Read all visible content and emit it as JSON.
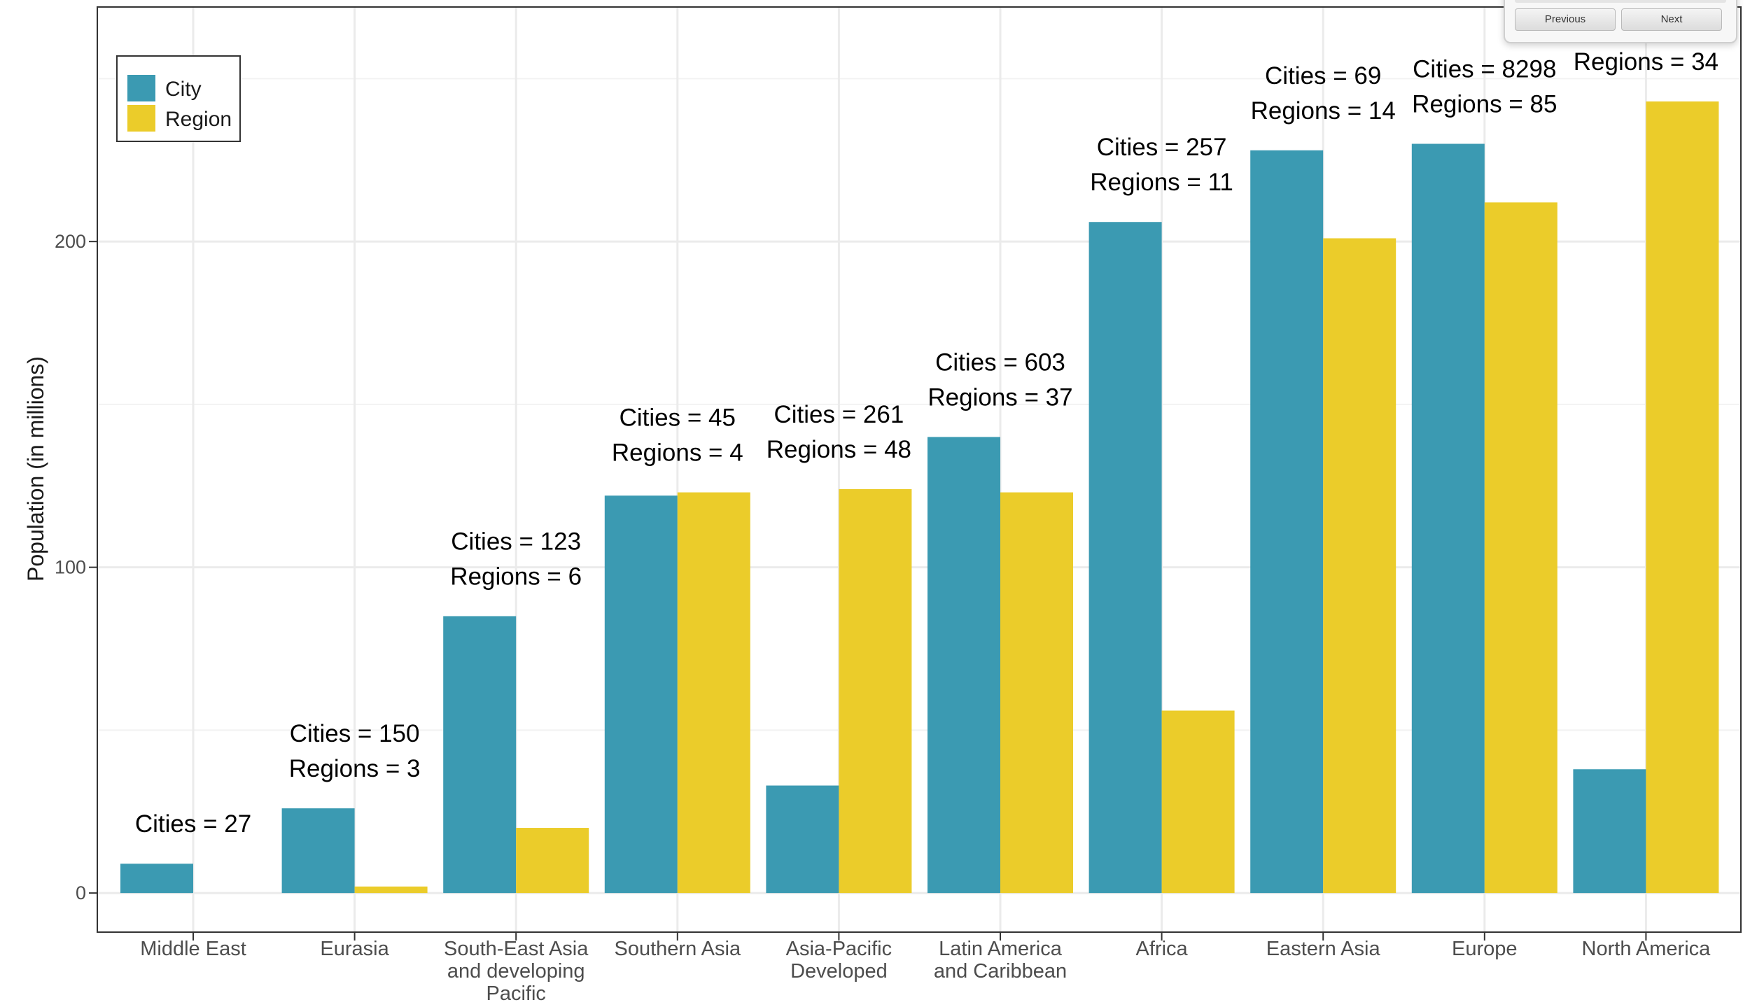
{
  "chart_data": {
    "type": "bar",
    "title": "",
    "xlabel": "",
    "ylabel": "Population (in millions)",
    "ylim": [
      -12,
      272
    ],
    "yticks": [
      0,
      100,
      200
    ],
    "categories": [
      "Middle East",
      "Eurasia",
      "South-East Asia\nand developing\nPacific",
      "Southern Asia",
      "Asia-Pacific\nDeveloped",
      "Latin America\nand Caribbean",
      "Africa",
      "Eastern Asia",
      "Europe",
      "North America"
    ],
    "series": [
      {
        "name": "City",
        "color": "#3b9ab2",
        "values": [
          9,
          26,
          85,
          122,
          33,
          140,
          206,
          228,
          230,
          38
        ]
      },
      {
        "name": "Region",
        "color": "#ebcc2a",
        "values": [
          0,
          2,
          20,
          123,
          124,
          123,
          56,
          201,
          212,
          243
        ]
      }
    ],
    "annotations": [
      {
        "line1": "Cities = 27",
        "line2": ""
      },
      {
        "line1": "Cities = 150",
        "line2": "Regions = 3"
      },
      {
        "line1": "Cities = 123",
        "line2": "Regions = 6"
      },
      {
        "line1": "Cities = 45",
        "line2": "Regions = 4"
      },
      {
        "line1": "Cities = 261",
        "line2": "Regions = 48"
      },
      {
        "line1": "Cities = 603",
        "line2": "Regions = 37"
      },
      {
        "line1": "Cities = 257",
        "line2": "Regions = 11"
      },
      {
        "line1": "Cities = 69",
        "line2": "Regions = 14"
      },
      {
        "line1": "Cities = 8298",
        "line2": "Regions = 85"
      },
      {
        "line1": "",
        "line2": "Regions = 34"
      }
    ],
    "legend": {
      "position": "top-left",
      "entries": [
        "City",
        "Region"
      ]
    },
    "grid": true
  },
  "popup": {
    "previous_label": "Previous",
    "next_label": "Next"
  }
}
